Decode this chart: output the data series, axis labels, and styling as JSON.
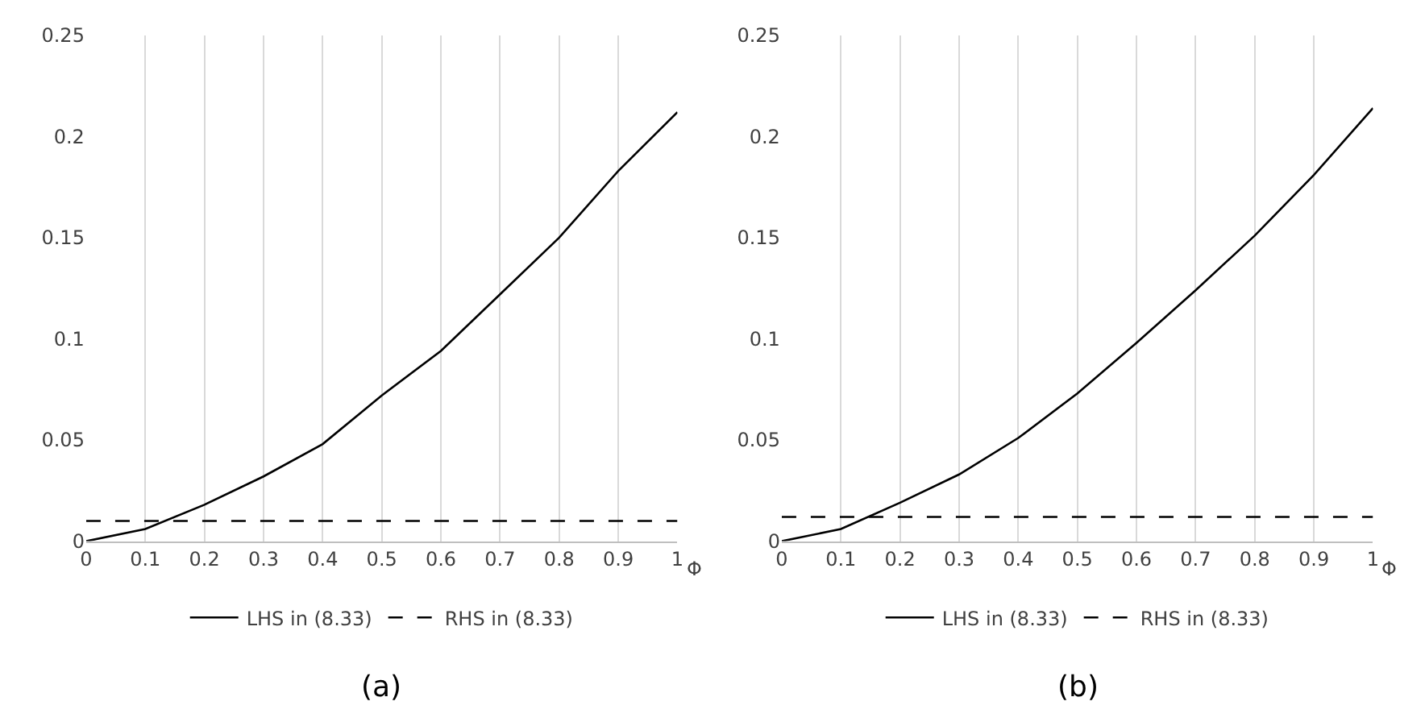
{
  "chart_data": [
    {
      "type": "line",
      "title": "(a)",
      "xlabel": "Φ",
      "x": [
        0,
        0.1,
        0.2,
        0.3,
        0.4,
        0.5,
        0.6,
        0.7,
        0.8,
        0.9,
        1
      ],
      "xlim": [
        0,
        1
      ],
      "xticks": [
        0,
        0.1,
        0.2,
        0.3,
        0.4,
        0.5,
        0.6,
        0.7,
        0.8,
        0.9,
        1
      ],
      "ylim": [
        0,
        0.25
      ],
      "yticks": [
        0,
        0.05,
        0.1,
        0.15,
        0.2,
        0.25
      ],
      "grid": "x",
      "legend": "bottom",
      "marker": "none",
      "series": [
        {
          "name": "LHS in (8.33)",
          "color": "#000000",
          "line_style": "solid",
          "values": [
            0,
            0.006,
            0.018,
            0.032,
            0.048,
            0.072,
            0.094,
            0.122,
            0.15,
            0.183,
            0.212
          ]
        },
        {
          "name": "RHS in (8.33)",
          "color": "#000000",
          "line_style": "dashed",
          "values": [
            0.01,
            0.01,
            0.01,
            0.01,
            0.01,
            0.01,
            0.01,
            0.01,
            0.01,
            0.01,
            0.01
          ]
        }
      ]
    },
    {
      "type": "line",
      "title": "(b)",
      "xlabel": "Φ",
      "x": [
        0,
        0.1,
        0.2,
        0.3,
        0.4,
        0.5,
        0.6,
        0.7,
        0.8,
        0.9,
        1
      ],
      "xlim": [
        0,
        1
      ],
      "xticks": [
        0,
        0.1,
        0.2,
        0.3,
        0.4,
        0.5,
        0.6,
        0.7,
        0.8,
        0.9,
        1
      ],
      "ylim": [
        0,
        0.25
      ],
      "yticks": [
        0,
        0.05,
        0.1,
        0.15,
        0.2,
        0.25
      ],
      "grid": "x",
      "legend": "bottom",
      "marker": "none",
      "series": [
        {
          "name": "LHS in (8.33)",
          "color": "#000000",
          "line_style": "solid",
          "values": [
            0,
            0.006,
            0.019,
            0.033,
            0.051,
            0.073,
            0.098,
            0.124,
            0.151,
            0.181,
            0.214
          ]
        },
        {
          "name": "RHS in (8.33)",
          "color": "#000000",
          "line_style": "dashed",
          "values": [
            0.012,
            0.012,
            0.012,
            0.012,
            0.012,
            0.012,
            0.012,
            0.012,
            0.012,
            0.012,
            0.012
          ]
        }
      ]
    }
  ]
}
